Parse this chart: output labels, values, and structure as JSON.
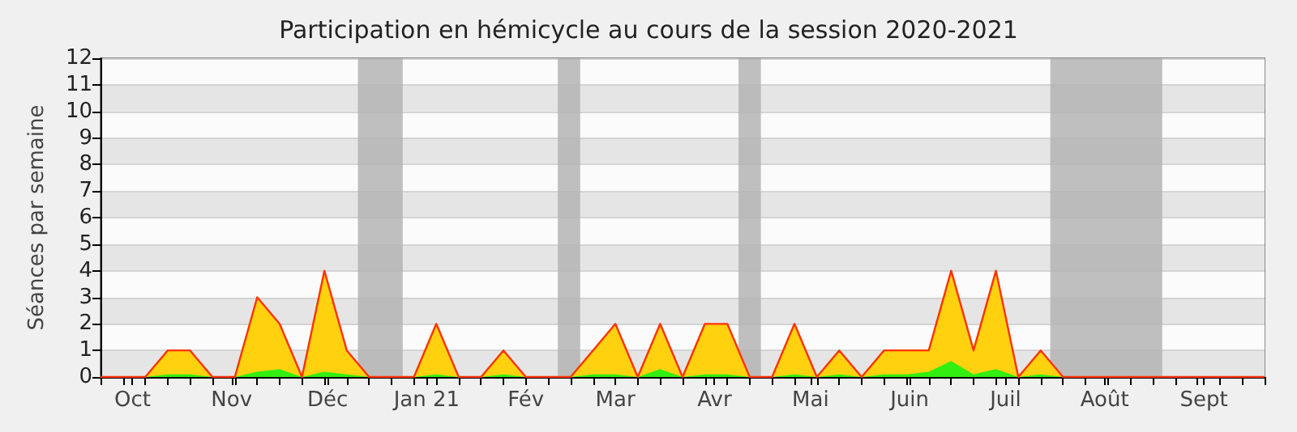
{
  "chart_data": {
    "type": "area",
    "title": "Participation en hémicycle au cours de la session 2020-2021",
    "ylabel": "Séances par semaine",
    "x": [
      "2020-09-21",
      "2020-09-28",
      "2020-10-05",
      "2020-10-12",
      "2020-10-19",
      "2020-10-26",
      "2020-11-02",
      "2020-11-09",
      "2020-11-16",
      "2020-11-23",
      "2020-11-30",
      "2020-12-07",
      "2020-12-14",
      "2020-12-21",
      "2020-12-28",
      "2021-01-04",
      "2021-01-11",
      "2021-01-18",
      "2021-01-25",
      "2021-02-01",
      "2021-02-08",
      "2021-02-15",
      "2021-02-22",
      "2021-03-01",
      "2021-03-08",
      "2021-03-15",
      "2021-03-22",
      "2021-03-29",
      "2021-04-05",
      "2021-04-12",
      "2021-04-19",
      "2021-04-26",
      "2021-05-03",
      "2021-05-10",
      "2021-05-17",
      "2021-05-24",
      "2021-05-31",
      "2021-06-07",
      "2021-06-14",
      "2021-06-21",
      "2021-06-28",
      "2021-07-05",
      "2021-07-12",
      "2021-07-19",
      "2021-07-26",
      "2021-08-02",
      "2021-08-09",
      "2021-08-16",
      "2021-08-23",
      "2021-08-30",
      "2021-09-06",
      "2021-09-13",
      "2021-09-20"
    ],
    "series": [
      {
        "color": "#ffd10f",
        "values": [
          0,
          0,
          0,
          1,
          1,
          0,
          0,
          3,
          2,
          0,
          4,
          1,
          0,
          0,
          0,
          2,
          0,
          0,
          1,
          0,
          0,
          0,
          1,
          2,
          0,
          2,
          0,
          2,
          2,
          0,
          0,
          2,
          0,
          1,
          0,
          1,
          1,
          1,
          4,
          1,
          4,
          0,
          1,
          0,
          0,
          0,
          0,
          0,
          0,
          0,
          0,
          0,
          0
        ]
      },
      {
        "color": "#33ee11",
        "values": [
          0,
          0,
          0,
          0.1,
          0.1,
          0,
          0,
          0.2,
          0.3,
          0,
          0.2,
          0.1,
          0,
          0,
          0,
          0.1,
          0,
          0,
          0.1,
          0,
          0,
          0,
          0.1,
          0.1,
          0,
          0.3,
          0,
          0.1,
          0.1,
          0,
          0,
          0.1,
          0,
          0.1,
          0,
          0.1,
          0.1,
          0.2,
          0.6,
          0.1,
          0.3,
          0,
          0.1,
          0,
          0,
          0,
          0,
          0,
          0,
          0,
          0,
          0,
          0
        ]
      }
    ],
    "xlim": [
      "2020-09-21",
      "2021-09-20"
    ],
    "xticks": [
      {
        "value": "2020-09-21",
        "label": null
      },
      {
        "value": "2020-09-28",
        "label": null
      },
      {
        "value": "2020-10-01",
        "label": "Oct"
      },
      {
        "value": "2020-10-05",
        "label": null
      },
      {
        "value": "2020-10-12",
        "label": null
      },
      {
        "value": "2020-10-19",
        "label": null
      },
      {
        "value": "2020-10-26",
        "label": null
      },
      {
        "value": "2020-11-01",
        "label": "Nov"
      },
      {
        "value": "2020-11-02",
        "label": null
      },
      {
        "value": "2020-11-09",
        "label": null
      },
      {
        "value": "2020-11-16",
        "label": null
      },
      {
        "value": "2020-11-23",
        "label": null
      },
      {
        "value": "2020-11-30",
        "label": null
      },
      {
        "value": "2020-12-01",
        "label": "Déc"
      },
      {
        "value": "2020-12-07",
        "label": null
      },
      {
        "value": "2020-12-14",
        "label": null
      },
      {
        "value": "2020-12-21",
        "label": null
      },
      {
        "value": "2020-12-28",
        "label": null
      },
      {
        "value": "2021-01-01",
        "label": "Jan 21"
      },
      {
        "value": "2021-01-04",
        "label": null
      },
      {
        "value": "2021-01-11",
        "label": null
      },
      {
        "value": "2021-01-18",
        "label": null
      },
      {
        "value": "2021-01-25",
        "label": null
      },
      {
        "value": "2021-02-01",
        "label": "Fév"
      },
      {
        "value": "2021-02-08",
        "label": null
      },
      {
        "value": "2021-02-15",
        "label": null
      },
      {
        "value": "2021-02-22",
        "label": null
      },
      {
        "value": "2021-03-01",
        "label": "Mar"
      },
      {
        "value": "2021-03-08",
        "label": null
      },
      {
        "value": "2021-03-15",
        "label": null
      },
      {
        "value": "2021-03-22",
        "label": null
      },
      {
        "value": "2021-03-29",
        "label": null
      },
      {
        "value": "2021-04-01",
        "label": "Avr"
      },
      {
        "value": "2021-04-05",
        "label": null
      },
      {
        "value": "2021-04-12",
        "label": null
      },
      {
        "value": "2021-04-19",
        "label": null
      },
      {
        "value": "2021-04-26",
        "label": null
      },
      {
        "value": "2021-05-01",
        "label": "Mai"
      },
      {
        "value": "2021-05-03",
        "label": null
      },
      {
        "value": "2021-05-10",
        "label": null
      },
      {
        "value": "2021-05-17",
        "label": null
      },
      {
        "value": "2021-05-24",
        "label": null
      },
      {
        "value": "2021-05-31",
        "label": null
      },
      {
        "value": "2021-06-01",
        "label": "Juin"
      },
      {
        "value": "2021-06-07",
        "label": null
      },
      {
        "value": "2021-06-14",
        "label": null
      },
      {
        "value": "2021-06-21",
        "label": null
      },
      {
        "value": "2021-06-28",
        "label": null
      },
      {
        "value": "2021-07-01",
        "label": "Juil"
      },
      {
        "value": "2021-07-05",
        "label": null
      },
      {
        "value": "2021-07-12",
        "label": null
      },
      {
        "value": "2021-07-19",
        "label": null
      },
      {
        "value": "2021-07-26",
        "label": null
      },
      {
        "value": "2021-08-01",
        "label": "Août"
      },
      {
        "value": "2021-08-02",
        "label": null
      },
      {
        "value": "2021-08-09",
        "label": null
      },
      {
        "value": "2021-08-16",
        "label": null
      },
      {
        "value": "2021-08-23",
        "label": null
      },
      {
        "value": "2021-08-30",
        "label": null
      },
      {
        "value": "2021-09-01",
        "label": "Sept"
      },
      {
        "value": "2021-09-06",
        "label": null
      },
      {
        "value": "2021-09-13",
        "label": null
      },
      {
        "value": "2021-09-20",
        "label": null
      }
    ],
    "ylim": [
      0,
      12
    ],
    "yticks": [
      0,
      1,
      2,
      3,
      4,
      5,
      6,
      7,
      8,
      9,
      10,
      11,
      12
    ],
    "bands": [
      {
        "axis": "x",
        "from": "2020-12-10T12:00",
        "to": "2020-12-24T12:00",
        "color": "#b4b4b4"
      },
      {
        "axis": "x",
        "from": "2021-02-11",
        "to": "2021-02-18",
        "color": "#b4b4b4"
      },
      {
        "axis": "x",
        "from": "2021-04-08T12:00",
        "to": "2021-04-15T12:00",
        "color": "#b4b4b4"
      },
      {
        "axis": "x",
        "from": "2021-07-15",
        "to": "2021-08-19",
        "color": "#b4b4b4"
      }
    ],
    "grid": "y"
  }
}
